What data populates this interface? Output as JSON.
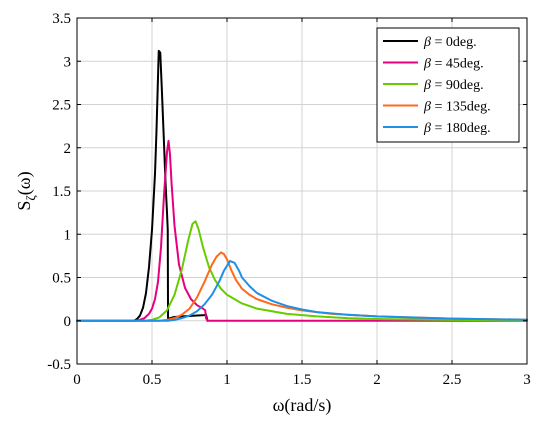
{
  "chart_data": {
    "type": "line",
    "xlabel": "ω(rad/s)",
    "ylabel_main": "S",
    "ylabel_sub": "ζ",
    "ylabel_tail": "(ω)",
    "xlim": [
      0,
      3
    ],
    "ylim": [
      -0.5,
      3.5
    ],
    "xticks": [
      0,
      0.5,
      1,
      1.5,
      2,
      2.5,
      3
    ],
    "xtick_labels": [
      "0",
      "0.5",
      "1",
      "1.5",
      "2",
      "2.5",
      "3"
    ],
    "yticks": [
      -0.5,
      0,
      0.5,
      1,
      1.5,
      2,
      2.5,
      3,
      3.5
    ],
    "ytick_labels": [
      "-0.5",
      "0",
      "0.5",
      "1",
      "1.5",
      "2",
      "2.5",
      "3",
      "3.5"
    ],
    "grid": true,
    "legend_position": "top-right",
    "series": [
      {
        "name": "β = 0deg.",
        "greek": "β",
        "rest": " = 0deg.",
        "color": "#000000",
        "x": [
          0,
          0.38,
          0.4,
          0.42,
          0.44,
          0.46,
          0.48,
          0.5,
          0.52,
          0.53,
          0.545,
          0.555,
          0.565,
          0.58,
          0.59,
          0.6,
          0.605,
          0.607,
          0.608,
          0.61,
          0.62,
          0.64,
          0.66,
          0.7,
          0.75,
          0.8,
          0.85,
          0.86,
          0.87
        ],
        "y": [
          0,
          0,
          0.02,
          0.06,
          0.15,
          0.32,
          0.62,
          1.05,
          1.7,
          2.2,
          3.12,
          3.1,
          2.7,
          2.05,
          1.6,
          1.25,
          1.05,
          0.01,
          0,
          0.02,
          0.03,
          0.04,
          0.045,
          0.05,
          0.055,
          0.06,
          0.065,
          0.07,
          0
        ]
      },
      {
        "name": "β = 45deg.",
        "greek": "β",
        "rest": " = 45deg.",
        "color": "#e4007f",
        "x": [
          0,
          0.4,
          0.45,
          0.48,
          0.5,
          0.52,
          0.54,
          0.56,
          0.58,
          0.6,
          0.61,
          0.62,
          0.63,
          0.65,
          0.68,
          0.72,
          0.76,
          0.8,
          0.84,
          0.855,
          0.86,
          0.87,
          3
        ],
        "y": [
          0,
          0,
          0.03,
          0.08,
          0.14,
          0.25,
          0.45,
          0.85,
          1.45,
          1.95,
          2.08,
          1.92,
          1.6,
          1.1,
          0.65,
          0.38,
          0.25,
          0.18,
          0.14,
          0.12,
          0.03,
          0,
          0
        ]
      },
      {
        "name": "β = 90deg.",
        "greek": "β",
        "rest": " = 90deg.",
        "color": "#66cc00",
        "x": [
          0,
          0.45,
          0.5,
          0.55,
          0.6,
          0.65,
          0.7,
          0.74,
          0.77,
          0.79,
          0.81,
          0.84,
          0.88,
          0.92,
          0.96,
          1.0,
          1.1,
          1.2,
          1.4,
          1.6,
          1.8,
          2.0,
          2.5,
          3.0
        ],
        "y": [
          0,
          0,
          0.01,
          0.04,
          0.12,
          0.3,
          0.6,
          0.92,
          1.12,
          1.15,
          1.06,
          0.85,
          0.62,
          0.47,
          0.37,
          0.3,
          0.2,
          0.14,
          0.08,
          0.05,
          0.03,
          0.02,
          0.01,
          0.005
        ]
      },
      {
        "name": "β = 135deg.",
        "greek": "β",
        "rest": " = 135deg.",
        "color": "#ff6a1a",
        "x": [
          0,
          0.55,
          0.6,
          0.65,
          0.7,
          0.75,
          0.8,
          0.85,
          0.9,
          0.93,
          0.96,
          0.98,
          1.0,
          1.03,
          1.06,
          1.1,
          1.15,
          1.2,
          1.3,
          1.4,
          1.5,
          1.7,
          2.0,
          2.5,
          3.0
        ],
        "y": [
          0,
          0,
          0.01,
          0.03,
          0.07,
          0.14,
          0.27,
          0.45,
          0.65,
          0.74,
          0.79,
          0.77,
          0.71,
          0.58,
          0.47,
          0.37,
          0.3,
          0.25,
          0.19,
          0.15,
          0.12,
          0.08,
          0.05,
          0.025,
          0.012
        ]
      },
      {
        "name": "β = 180deg.",
        "greek": "β",
        "rest": " = 180deg.",
        "color": "#1e90e6",
        "x": [
          0,
          0.6,
          0.65,
          0.7,
          0.75,
          0.8,
          0.85,
          0.9,
          0.95,
          0.98,
          1.02,
          1.05,
          1.08,
          1.1,
          1.15,
          1.2,
          1.3,
          1.4,
          1.5,
          1.6,
          1.8,
          2.0,
          2.5,
          3.0
        ],
        "y": [
          0,
          0,
          0.01,
          0.03,
          0.06,
          0.11,
          0.19,
          0.3,
          0.46,
          0.58,
          0.69,
          0.67,
          0.58,
          0.5,
          0.4,
          0.32,
          0.23,
          0.17,
          0.13,
          0.1,
          0.07,
          0.05,
          0.025,
          0.012
        ]
      }
    ]
  }
}
